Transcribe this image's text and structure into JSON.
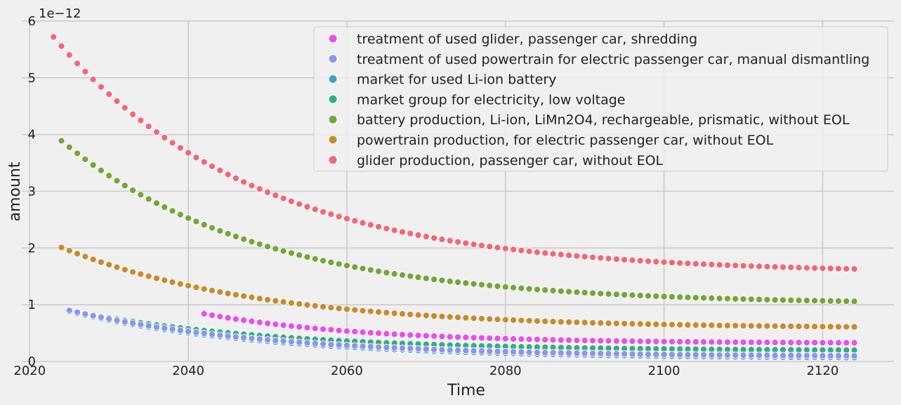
{
  "chart_data": {
    "type": "scatter",
    "title": "",
    "xlabel": "Time",
    "ylabel": "amount",
    "y_scale_label": "1e−12",
    "xlim": [
      2019,
      2129
    ],
    "ylim": [
      0,
      6
    ],
    "x_ticks": [
      2020,
      2040,
      2060,
      2080,
      2100,
      2120
    ],
    "y_ticks": [
      0,
      1,
      2,
      3,
      4,
      5,
      6
    ],
    "grid": true,
    "legend_position": "top-right",
    "x_start": 2023,
    "x_end": 2124,
    "series": [
      {
        "name": "treatment of used glider, passenger car, shredding",
        "color": "#e850e8",
        "x_start": 2042,
        "values_e12": [
          0.84,
          0.33
        ]
      },
      {
        "name": "treatment of used powertrain for electric passenger car, manual dismantling",
        "color": "#8e93ee",
        "x_start": 2025,
        "values_e12": [
          0.9,
          0.1
        ]
      },
      {
        "name": "market for used Li-ion battery",
        "color": "#39a7bd",
        "x_start": 2025,
        "values_e12": [
          0.88,
          0.07
        ]
      },
      {
        "name": "market group for electricity, low voltage",
        "color": "#33ae7e",
        "x_start": 2025,
        "values_e12": [
          0.9,
          0.2
        ]
      },
      {
        "name": "battery production, Li-ion, LiMn2O4, rechargeable, prismatic, without EOL",
        "color": "#77a53a",
        "x_start": 2024,
        "values_e12": [
          3.89,
          1.06
        ]
      },
      {
        "name": "powertrain production, for electric passenger car, without EOL",
        "color": "#c58d2e",
        "x_start": 2024,
        "values_e12": [
          2.01,
          0.61
        ]
      },
      {
        "name": "glider production, passenger car, without EOL",
        "color": "#f0687a",
        "x_start": 2023,
        "values_e12": [
          5.72,
          1.63
        ]
      }
    ]
  }
}
